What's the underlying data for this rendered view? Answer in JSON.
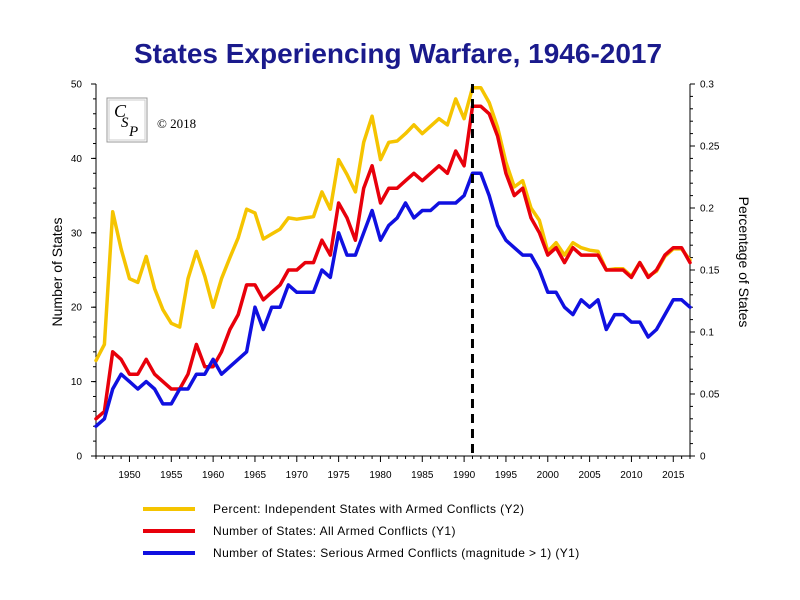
{
  "chart_data": {
    "type": "line",
    "title": "States Experiencing Warfare, 1946-2017",
    "ylabel": "Number of States",
    "y2label": "Percentage of States",
    "xlim": [
      1946,
      2017
    ],
    "ylim": [
      0,
      50
    ],
    "y2lim": [
      0,
      0.3
    ],
    "x_ticks": [
      1950,
      1955,
      1960,
      1965,
      1970,
      1975,
      1980,
      1985,
      1990,
      1995,
      2000,
      2005,
      2010,
      2015
    ],
    "y_ticks": [
      0,
      10,
      20,
      30,
      40,
      50
    ],
    "y2_ticks": [
      "0",
      "0.05",
      "0.1",
      "0.15",
      "0.2",
      "0.25",
      "0.3"
    ],
    "marker_year": 1991,
    "legend_position": "bottom",
    "copyright": "© 2018",
    "logo": "CSP",
    "x": [
      1946,
      1947,
      1948,
      1949,
      1950,
      1951,
      1952,
      1953,
      1954,
      1955,
      1956,
      1957,
      1958,
      1959,
      1960,
      1961,
      1962,
      1963,
      1964,
      1965,
      1966,
      1967,
      1968,
      1969,
      1970,
      1971,
      1972,
      1973,
      1974,
      1975,
      1976,
      1977,
      1978,
      1979,
      1980,
      1981,
      1982,
      1983,
      1984,
      1985,
      1986,
      1987,
      1988,
      1989,
      1990,
      1991,
      1992,
      1993,
      1994,
      1995,
      1996,
      1997,
      1998,
      1999,
      2000,
      2001,
      2002,
      2003,
      2004,
      2005,
      2006,
      2007,
      2008,
      2009,
      2010,
      2011,
      2012,
      2013,
      2014,
      2015,
      2016,
      2017
    ],
    "series": [
      {
        "name": "Percent: Independent States with Armed Conflicts (Y2)",
        "axis": "y2",
        "color": "#f5c400",
        "values": [
          0.077,
          0.09,
          0.197,
          0.167,
          0.143,
          0.14,
          0.161,
          0.135,
          0.118,
          0.107,
          0.104,
          0.143,
          0.165,
          0.145,
          0.12,
          0.143,
          0.16,
          0.176,
          0.199,
          0.196,
          0.175,
          0.179,
          0.183,
          0.192,
          0.191,
          0.192,
          0.193,
          0.213,
          0.199,
          0.239,
          0.227,
          0.213,
          0.253,
          0.274,
          0.239,
          0.253,
          0.254,
          0.26,
          0.267,
          0.26,
          0.266,
          0.272,
          0.267,
          0.288,
          0.272,
          0.297,
          0.297,
          0.285,
          0.265,
          0.237,
          0.217,
          0.222,
          0.2,
          0.19,
          0.165,
          0.172,
          0.162,
          0.172,
          0.168,
          0.166,
          0.165,
          0.15,
          0.151,
          0.151,
          0.145,
          0.156,
          0.145,
          0.149,
          0.161,
          0.167,
          0.167,
          0.158
        ]
      },
      {
        "name": "Number of States: All Armed Conflicts (Y1)",
        "axis": "y1",
        "color": "#e8000b",
        "values": [
          5,
          6,
          14,
          13,
          11,
          11,
          13,
          11,
          10,
          9,
          9,
          11,
          15,
          12,
          12,
          14,
          17,
          19,
          23,
          23,
          21,
          22,
          23,
          25,
          25,
          26,
          26,
          29,
          27,
          34,
          32,
          29,
          36,
          39,
          34,
          36,
          36,
          37,
          38,
          37,
          38,
          39,
          38,
          41,
          39,
          47,
          47,
          46,
          43,
          38,
          35,
          36,
          32,
          30,
          27,
          28,
          26,
          28,
          27,
          27,
          27,
          25,
          25,
          25,
          24,
          26,
          24,
          25,
          27,
          28,
          28,
          26
        ]
      },
      {
        "name": "Number of States: Serious Armed Conflicts (magnitude > 1) (Y1)",
        "axis": "y1",
        "color": "#1010e0",
        "values": [
          4,
          5,
          9,
          11,
          10,
          9,
          10,
          9,
          7,
          7,
          9,
          9,
          11,
          11,
          13,
          11,
          12,
          13,
          14,
          20,
          17,
          20,
          20,
          23,
          22,
          22,
          22,
          25,
          24,
          30,
          27,
          27,
          30,
          33,
          29,
          31,
          32,
          34,
          32,
          33,
          33,
          34,
          34,
          34,
          35,
          38,
          38,
          35,
          31,
          29,
          28,
          27,
          27,
          25,
          22,
          22,
          20,
          19,
          21,
          20,
          21,
          17,
          19,
          19,
          18,
          18,
          16,
          17,
          19,
          21,
          21,
          20
        ]
      }
    ]
  }
}
